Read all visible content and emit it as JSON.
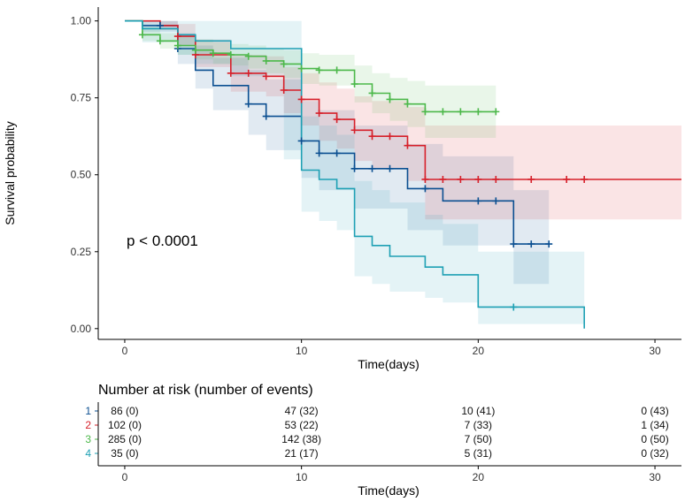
{
  "chart_data": {
    "type": "line",
    "subtype": "kaplan-meier",
    "title": "",
    "xlabel": "Time(days)",
    "ylabel": "Survival probability",
    "xlim": [
      -1.5,
      31.5
    ],
    "ylim": [
      -0.035,
      1.045
    ],
    "xticks": [
      0,
      10,
      20,
      30
    ],
    "yticks": [
      0.0,
      0.25,
      0.5,
      0.75,
      1.0
    ],
    "ytick_labels": [
      "0.00",
      "0.25",
      "0.50",
      "0.75",
      "1.00"
    ],
    "grid": false,
    "annotation": "p < 0.0001",
    "series": [
      {
        "name": "1",
        "color": "#0b4f91",
        "steps": [
          [
            0,
            1.0
          ],
          [
            1,
            0.985
          ],
          [
            3,
            0.91
          ],
          [
            4,
            0.84
          ],
          [
            5,
            0.79
          ],
          [
            7,
            0.73
          ],
          [
            8,
            0.69
          ],
          [
            10,
            0.61
          ],
          [
            11,
            0.57
          ],
          [
            13,
            0.52
          ],
          [
            16,
            0.455
          ],
          [
            18,
            0.415
          ],
          [
            22,
            0.275
          ],
          [
            24,
            0.275
          ]
        ],
        "censors": [
          [
            2,
            0.985
          ],
          [
            3,
            0.91
          ],
          [
            7,
            0.73
          ],
          [
            8,
            0.69
          ],
          [
            10,
            0.61
          ],
          [
            11,
            0.57
          ],
          [
            12,
            0.57
          ],
          [
            13,
            0.52
          ],
          [
            14,
            0.52
          ],
          [
            15,
            0.52
          ],
          [
            17,
            0.455
          ],
          [
            20,
            0.415
          ],
          [
            21,
            0.415
          ],
          [
            22,
            0.275
          ],
          [
            23,
            0.275
          ],
          [
            24,
            0.275
          ]
        ],
        "band": [
          [
            0,
            1.0,
            1.0
          ],
          [
            1,
            0.965,
            1.0
          ],
          [
            3,
            0.86,
            0.96
          ],
          [
            4,
            0.78,
            0.92
          ],
          [
            5,
            0.71,
            0.88
          ],
          [
            7,
            0.63,
            0.84
          ],
          [
            8,
            0.58,
            0.81
          ],
          [
            10,
            0.49,
            0.74
          ],
          [
            11,
            0.45,
            0.71
          ],
          [
            13,
            0.39,
            0.66
          ],
          [
            16,
            0.32,
            0.6
          ],
          [
            18,
            0.27,
            0.56
          ],
          [
            22,
            0.145,
            0.45
          ],
          [
            24,
            0.145,
            0.45
          ]
        ]
      },
      {
        "name": "2",
        "color": "#d6202a",
        "steps": [
          [
            0,
            1.0
          ],
          [
            2,
            0.985
          ],
          [
            3,
            0.95
          ],
          [
            4,
            0.89
          ],
          [
            6,
            0.83
          ],
          [
            8,
            0.82
          ],
          [
            9,
            0.775
          ],
          [
            10,
            0.745
          ],
          [
            11,
            0.7
          ],
          [
            12,
            0.68
          ],
          [
            13,
            0.645
          ],
          [
            14,
            0.625
          ],
          [
            16,
            0.595
          ],
          [
            17,
            0.485
          ],
          [
            31.5,
            0.485
          ]
        ],
        "censors": [
          [
            3,
            0.95
          ],
          [
            4,
            0.89
          ],
          [
            6,
            0.83
          ],
          [
            7,
            0.83
          ],
          [
            8,
            0.82
          ],
          [
            9,
            0.775
          ],
          [
            10,
            0.745
          ],
          [
            11,
            0.7
          ],
          [
            12,
            0.68
          ],
          [
            13,
            0.645
          ],
          [
            14,
            0.625
          ],
          [
            15,
            0.625
          ],
          [
            16,
            0.595
          ],
          [
            17,
            0.485
          ],
          [
            18,
            0.485
          ],
          [
            19,
            0.485
          ],
          [
            20,
            0.485
          ],
          [
            21,
            0.485
          ],
          [
            23,
            0.485
          ],
          [
            25,
            0.485
          ],
          [
            26,
            0.485
          ]
        ],
        "band": [
          [
            0,
            1.0,
            1.0
          ],
          [
            2,
            0.97,
            1.0
          ],
          [
            3,
            0.92,
            0.99
          ],
          [
            4,
            0.85,
            0.94
          ],
          [
            6,
            0.77,
            0.89
          ],
          [
            8,
            0.755,
            0.885
          ],
          [
            9,
            0.7,
            0.85
          ],
          [
            10,
            0.66,
            0.83
          ],
          [
            11,
            0.61,
            0.8
          ],
          [
            12,
            0.585,
            0.78
          ],
          [
            13,
            0.545,
            0.755
          ],
          [
            14,
            0.52,
            0.74
          ],
          [
            16,
            0.48,
            0.72
          ],
          [
            17,
            0.355,
            0.66
          ],
          [
            31.5,
            0.355,
            0.66
          ]
        ]
      },
      {
        "name": "3",
        "color": "#4cb84a",
        "steps": [
          [
            0,
            1.0
          ],
          [
            1,
            0.955
          ],
          [
            2,
            0.935
          ],
          [
            3,
            0.92
          ],
          [
            4,
            0.905
          ],
          [
            5,
            0.895
          ],
          [
            6,
            0.89
          ],
          [
            7,
            0.885
          ],
          [
            8,
            0.87
          ],
          [
            9,
            0.86
          ],
          [
            10,
            0.845
          ],
          [
            11,
            0.84
          ],
          [
            13,
            0.795
          ],
          [
            14,
            0.765
          ],
          [
            15,
            0.745
          ],
          [
            16,
            0.73
          ],
          [
            17,
            0.705
          ],
          [
            21,
            0.705
          ]
        ],
        "censors": [
          [
            1,
            0.955
          ],
          [
            2,
            0.935
          ],
          [
            3,
            0.92
          ],
          [
            4,
            0.905
          ],
          [
            5,
            0.895
          ],
          [
            6,
            0.89
          ],
          [
            7,
            0.885
          ],
          [
            8,
            0.87
          ],
          [
            9,
            0.86
          ],
          [
            10,
            0.845
          ],
          [
            11,
            0.84
          ],
          [
            12,
            0.84
          ],
          [
            13,
            0.795
          ],
          [
            14,
            0.765
          ],
          [
            15,
            0.745
          ],
          [
            16,
            0.73
          ],
          [
            17,
            0.705
          ],
          [
            18,
            0.705
          ],
          [
            19,
            0.705
          ],
          [
            20,
            0.705
          ],
          [
            21,
            0.705
          ]
        ],
        "band": [
          [
            0,
            1.0,
            1.0
          ],
          [
            1,
            0.935,
            0.98
          ],
          [
            2,
            0.91,
            0.96
          ],
          [
            3,
            0.89,
            0.95
          ],
          [
            4,
            0.875,
            0.94
          ],
          [
            5,
            0.86,
            0.93
          ],
          [
            6,
            0.855,
            0.925
          ],
          [
            7,
            0.845,
            0.92
          ],
          [
            8,
            0.83,
            0.91
          ],
          [
            9,
            0.815,
            0.905
          ],
          [
            10,
            0.795,
            0.895
          ],
          [
            11,
            0.79,
            0.89
          ],
          [
            13,
            0.735,
            0.855
          ],
          [
            14,
            0.7,
            0.83
          ],
          [
            15,
            0.675,
            0.815
          ],
          [
            16,
            0.655,
            0.805
          ],
          [
            17,
            0.62,
            0.79
          ],
          [
            21,
            0.62,
            0.79
          ]
        ]
      },
      {
        "name": "4",
        "color": "#1ea0b4",
        "steps": [
          [
            0,
            1.0
          ],
          [
            1,
            0.975
          ],
          [
            3,
            0.955
          ],
          [
            4,
            0.935
          ],
          [
            6,
            0.91
          ],
          [
            10,
            0.515
          ],
          [
            11,
            0.485
          ],
          [
            12,
            0.455
          ],
          [
            13,
            0.3
          ],
          [
            14,
            0.27
          ],
          [
            15,
            0.235
          ],
          [
            17,
            0.2
          ],
          [
            18,
            0.175
          ],
          [
            20,
            0.07
          ],
          [
            26,
            0.07
          ],
          [
            26,
            0.0
          ]
        ],
        "censors": [
          [
            22,
            0.07
          ]
        ],
        "band": [
          [
            0,
            1.0,
            1.0
          ],
          [
            1,
            0.93,
            1.0
          ],
          [
            3,
            0.89,
            1.0
          ],
          [
            4,
            0.86,
            1.0
          ],
          [
            6,
            0.82,
            1.0
          ],
          [
            9,
            0.55,
            1.0
          ],
          [
            10,
            0.38,
            0.69
          ],
          [
            11,
            0.35,
            0.66
          ],
          [
            12,
            0.32,
            0.63
          ],
          [
            13,
            0.17,
            0.48
          ],
          [
            14,
            0.145,
            0.45
          ],
          [
            15,
            0.12,
            0.41
          ],
          [
            17,
            0.1,
            0.37
          ],
          [
            18,
            0.085,
            0.34
          ],
          [
            20,
            0.015,
            0.25
          ],
          [
            26,
            0.015,
            0.25
          ]
        ]
      }
    ]
  },
  "risk_table": {
    "title": "Number at risk (number of events)",
    "xlabel": "Time(days)",
    "times": [
      0,
      10,
      20,
      30
    ],
    "rows": [
      {
        "strata": "1",
        "color": "#0b4f91",
        "cells": [
          "86 (0)",
          "47 (32)",
          "10 (41)",
          "0 (43)"
        ]
      },
      {
        "strata": "2",
        "color": "#d6202a",
        "cells": [
          "102 (0)",
          "53 (22)",
          "7 (33)",
          "1 (34)"
        ]
      },
      {
        "strata": "3",
        "color": "#4cb84a",
        "cells": [
          "285 (0)",
          "142 (38)",
          "7 (50)",
          "0 (50)"
        ]
      },
      {
        "strata": "4",
        "color": "#1ea0b4",
        "cells": [
          "35 (0)",
          "21 (17)",
          "5 (31)",
          "0 (32)"
        ]
      }
    ]
  }
}
